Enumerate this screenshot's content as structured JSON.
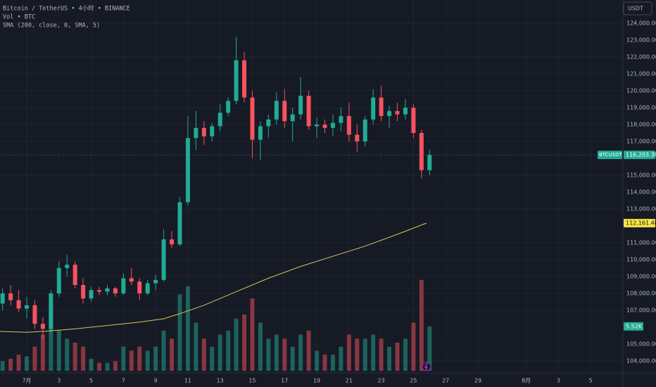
{
  "chart_data": {
    "type": "candlestick",
    "title": "Bitcoin / TetherUS • 4小时 • BINANCE",
    "volume_label": "Vol • BTC",
    "currency": "USDT",
    "up_color": "#22ab94",
    "down_color": "#f7525f",
    "grid": true,
    "x": [
      -0.5,
      0,
      0.5,
      1,
      1.5,
      2,
      2.5,
      3,
      3.5,
      4,
      4.5,
      5,
      5.5,
      6,
      6.5,
      7,
      7.5,
      8,
      8.5,
      9,
      9.5,
      10,
      10.5,
      11,
      11.5,
      12,
      12.5,
      13,
      13.5,
      14,
      14.5,
      15,
      15.5,
      16,
      16.5,
      17,
      17.5,
      18,
      18.5,
      19,
      19.5,
      20,
      20.5,
      21,
      21.5,
      22,
      22.5,
      23,
      23.5,
      24,
      24.5,
      25,
      25.5,
      26
    ],
    "open": [
      107400,
      108000,
      107600,
      107100,
      107300,
      106200,
      105900,
      108000,
      109500,
      109700,
      108500,
      107700,
      108200,
      108100,
      108300,
      108000,
      108900,
      108700,
      108000,
      108600,
      108800,
      111200,
      110900,
      113400,
      117200,
      117800,
      117300,
      117900,
      118700,
      119400,
      121800,
      119600,
      117100,
      117900,
      118300,
      119400,
      118200,
      118600,
      119700,
      117900,
      118000,
      117800,
      118100,
      118500,
      117400,
      117000,
      118300,
      119600,
      118500,
      118800,
      118600,
      119000,
      117500,
      115300
    ],
    "high": [
      108300,
      108500,
      108200,
      107800,
      107600,
      106600,
      108200,
      109900,
      110300,
      109900,
      108900,
      108400,
      108400,
      108500,
      108400,
      109200,
      109500,
      108900,
      108800,
      109100,
      111800,
      111700,
      113700,
      118500,
      118800,
      118200,
      118100,
      119200,
      119600,
      123200,
      122300,
      120000,
      118200,
      118600,
      119900,
      120100,
      119000,
      120800,
      120000,
      118400,
      118300,
      118600,
      119000,
      119300,
      118000,
      118500,
      120100,
      120300,
      119100,
      119300,
      119500,
      119200,
      117700,
      116500
    ],
    "low": [
      107000,
      107300,
      106900,
      106500,
      105900,
      105300,
      105700,
      107800,
      109000,
      108300,
      107400,
      107500,
      107900,
      107900,
      107800,
      107900,
      108500,
      107600,
      107900,
      108200,
      108700,
      110700,
      110800,
      113200,
      116500,
      116800,
      117000,
      117600,
      118500,
      119200,
      119300,
      116000,
      115900,
      117200,
      118000,
      117800,
      117000,
      118300,
      117700,
      117200,
      117500,
      117300,
      117600,
      117000,
      116400,
      116700,
      118000,
      118200,
      117800,
      118200,
      118300,
      117200,
      114800,
      115000
    ],
    "close": [
      108000,
      107600,
      107100,
      107300,
      106200,
      105900,
      108000,
      109500,
      109700,
      108500,
      107700,
      108200,
      108100,
      108300,
      108000,
      108900,
      108700,
      108000,
      108600,
      108800,
      111200,
      110900,
      113400,
      117200,
      117800,
      117300,
      117900,
      118700,
      119400,
      121800,
      119600,
      117100,
      117900,
      118300,
      119400,
      118200,
      118600,
      119700,
      117900,
      118000,
      117800,
      118100,
      118500,
      117400,
      117000,
      118300,
      119600,
      118500,
      118800,
      118600,
      119000,
      117500,
      115300,
      116203.38
    ],
    "volume": [
      1.2,
      1.5,
      2.0,
      1.8,
      3.0,
      4.5,
      7.5,
      5.0,
      4.0,
      3.5,
      3.0,
      1.5,
      1.0,
      1.0,
      1.2,
      3.0,
      2.5,
      3.0,
      2.5,
      3.0,
      5.0,
      4.0,
      9.5,
      10.5,
      6.0,
      4.0,
      3.0,
      4.5,
      5.0,
      6.5,
      7.0,
      9.0,
      6.0,
      4.0,
      4.5,
      4.0,
      3.0,
      4.5,
      5.0,
      2.5,
      2.0,
      2.0,
      3.0,
      4.5,
      4.0,
      4.0,
      4.5,
      4.0,
      3.0,
      3.5,
      4.0,
      6.0,
      11.3,
      5.52
    ],
    "volume_ylim": [
      0,
      14
    ],
    "sma": {
      "label": "SMA (200, close, 0, SMA, 5)",
      "color": "#d8c655",
      "x": [
        -0.66,
        1,
        2,
        4,
        6,
        8,
        9.5,
        10.5,
        12,
        14,
        16,
        18,
        20,
        22,
        24,
        25.8
      ],
      "values": [
        105750,
        105700,
        105750,
        105900,
        106100,
        106300,
        106500,
        106800,
        107300,
        108100,
        108900,
        109600,
        110200,
        110800,
        111500,
        112161.48
      ]
    },
    "markers": [
      {
        "name": "BTCUSDT",
        "value": 116203.38,
        "label": "116,203.38",
        "color": "#22ab94"
      },
      {
        "value": 112161.48,
        "label": "112,161.48",
        "color": "#f5e342"
      }
    ],
    "volume_marker": {
      "value": 5.52,
      "label": "5.52K",
      "color": "#22ab94"
    },
    "xlim": [
      -0.66,
      38
    ],
    "ylim": [
      103291.67,
      125375
    ],
    "xticks": [
      {
        "value": 1,
        "label": "7月"
      },
      3,
      5,
      7,
      9,
      11,
      13,
      15,
      17,
      19,
      21,
      23,
      25,
      27,
      29,
      {
        "value": 32,
        "label": "8月"
      },
      {
        "value": 34,
        "label": "3"
      },
      {
        "value": 36,
        "label": "5"
      }
    ],
    "yticks": [
      {
        "value": 104000,
        "label": "104,000.00"
      },
      {
        "value": 105000,
        "label": "105,000.00"
      },
      {
        "value": 107000,
        "label": "107,000.00"
      },
      {
        "value": 108000,
        "label": "108,000.00"
      },
      {
        "value": 109000,
        "label": "109,000.00"
      },
      {
        "value": 110000,
        "label": "110,000.00"
      },
      {
        "value": 111000,
        "label": "111,000.00"
      },
      {
        "value": 113000,
        "label": "113,000.00"
      },
      {
        "value": 114000,
        "label": "114,000.00"
      },
      {
        "value": 115000,
        "label": "115,000.00"
      },
      {
        "value": 117000,
        "label": "117,000.00"
      },
      {
        "value": 118000,
        "label": "118,000.00"
      },
      {
        "value": 119000,
        "label": "119,000.00"
      },
      {
        "value": 120000,
        "label": "120,000.00"
      },
      {
        "value": 121000,
        "label": "121,000.00"
      },
      {
        "value": 122000,
        "label": "122,000.00"
      },
      {
        "value": 123000,
        "label": "123,000.00"
      },
      {
        "value": 124000,
        "label": "124,000.00"
      }
    ]
  }
}
